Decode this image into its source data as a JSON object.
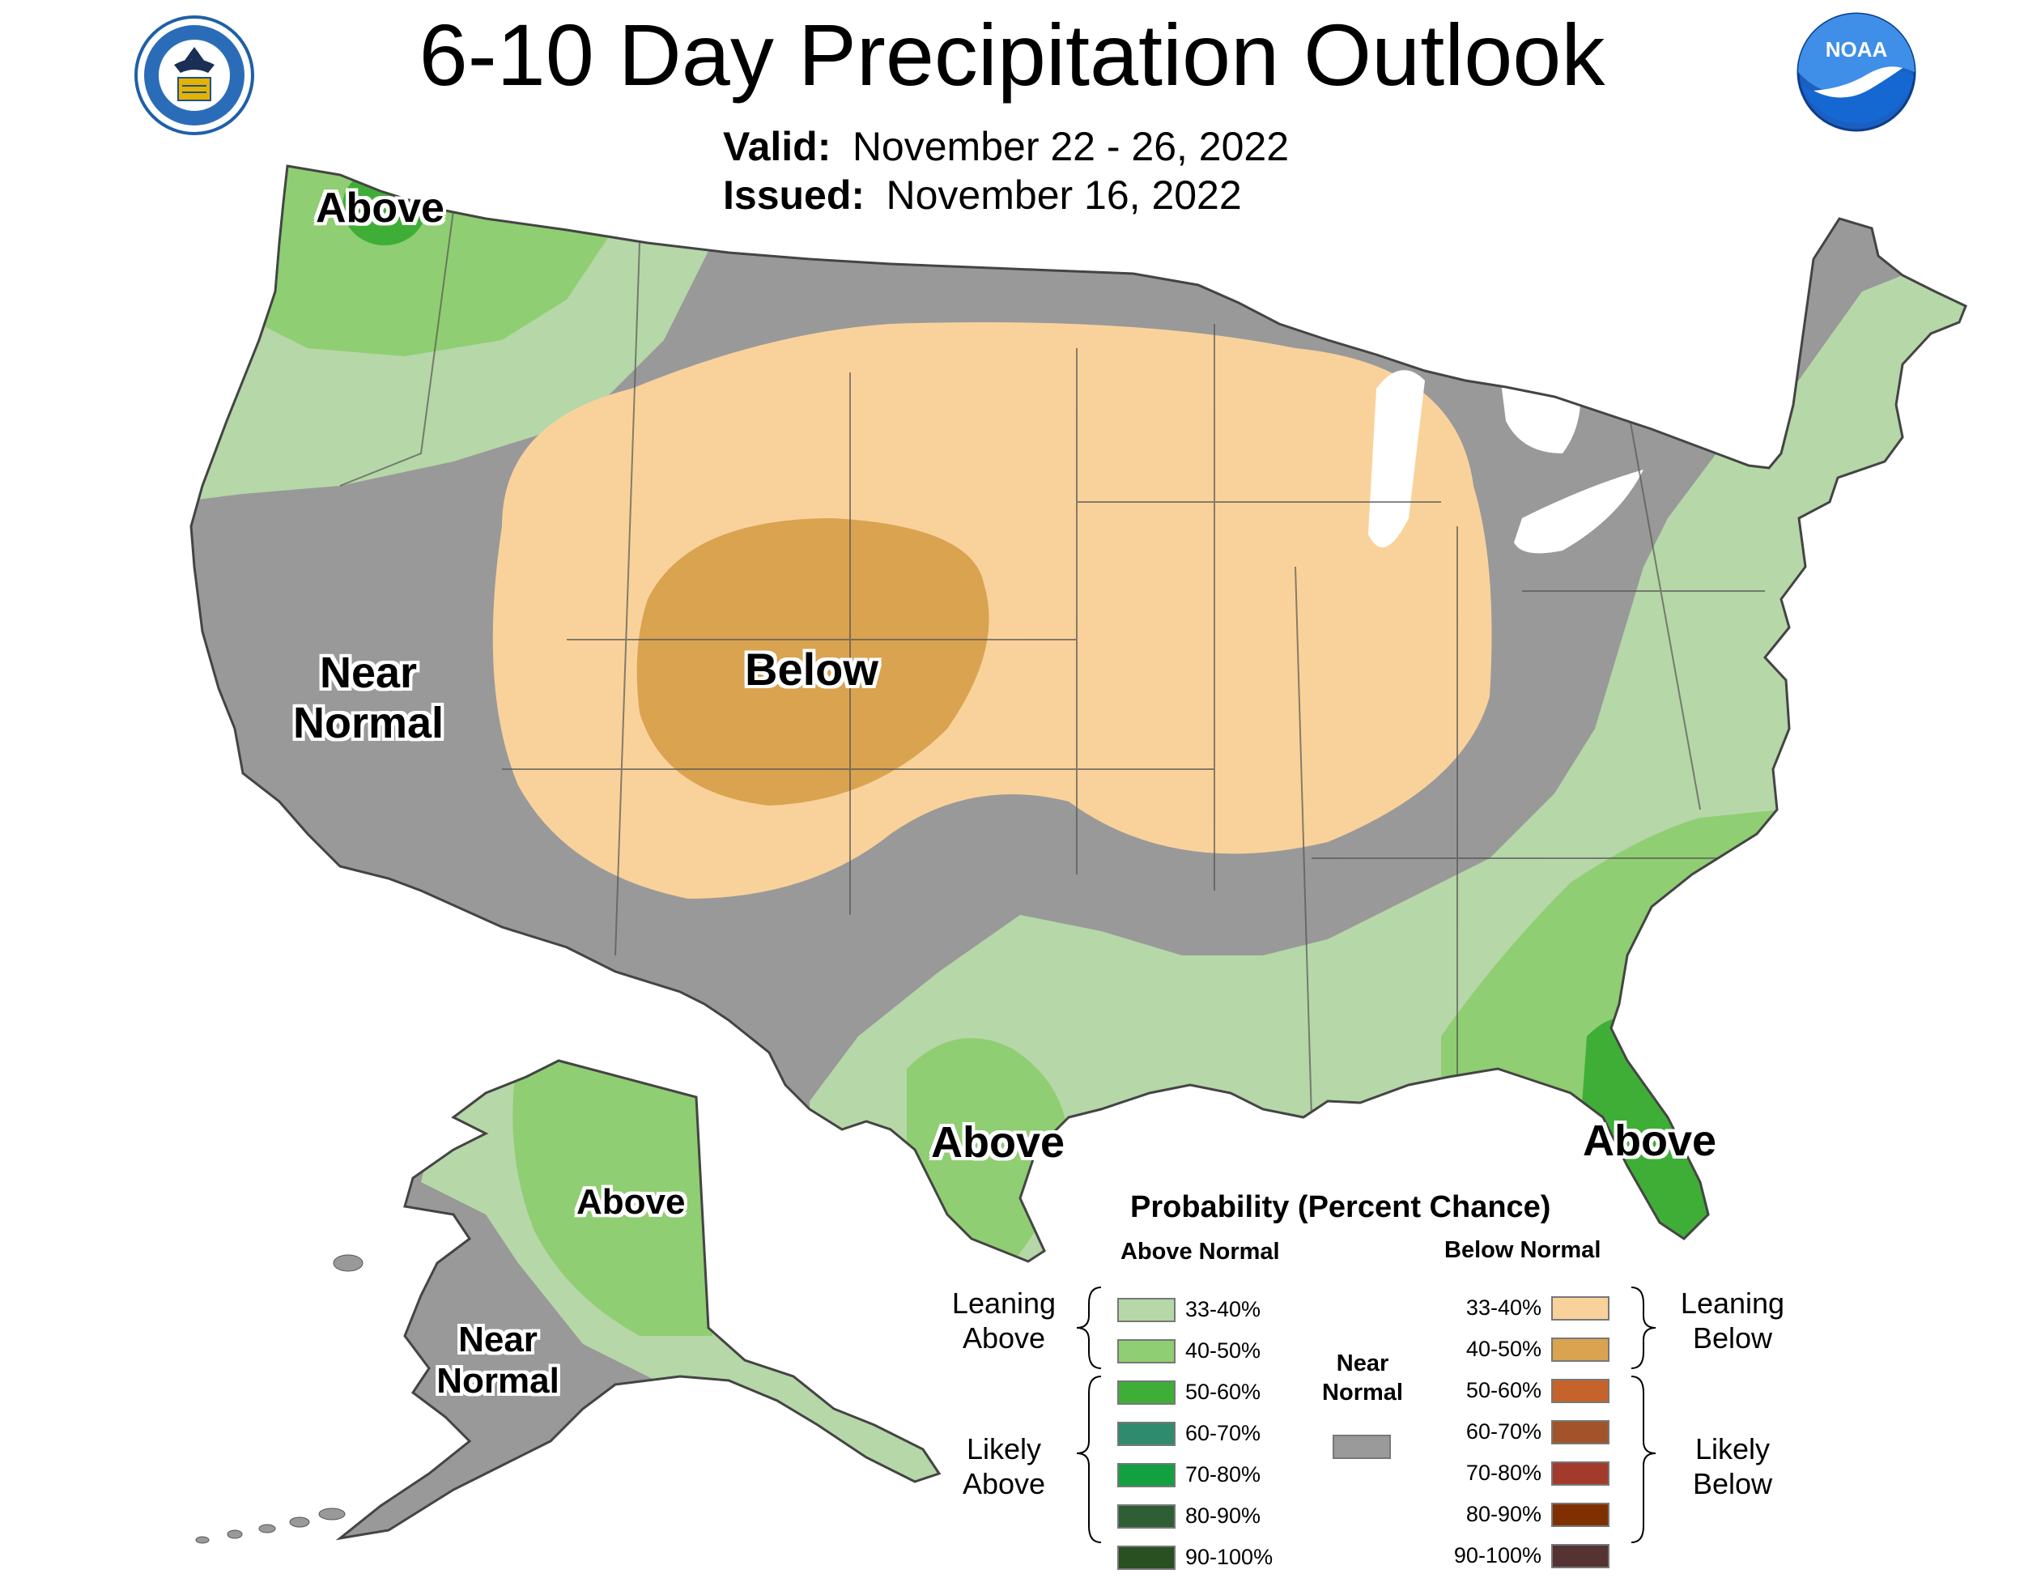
{
  "header": {
    "title": "6-10 Day Precipitation Outlook",
    "valid_label": "Valid:",
    "valid_value": "November 22 - 26, 2022",
    "issued_label": "Issued:",
    "issued_value": "November 16, 2022",
    "left_logo": "department-of-commerce-seal",
    "left_logo_text": "DEPARTMENT OF COMMERCE · UNITED STATES OF AMERICA",
    "right_logo": "noaa-logo",
    "right_logo_text": "NOAA"
  },
  "map": {
    "labels": {
      "northwest_above": "Above",
      "west_near_1": "Near",
      "west_near_2": "Normal",
      "central_below": "Below",
      "texas_above": "Above",
      "florida_above": "Above",
      "alaska_above": "Above",
      "alaska_near_1": "Near",
      "alaska_near_2": "Normal"
    },
    "colors": {
      "lean_above": "#b6d7a8",
      "above_40_50": "#8fce72",
      "above_50_60": "#3fae37",
      "near_normal": "#999999",
      "lean_below": "#f9d29b",
      "below_40_50": "#d9a350",
      "border": "#555555"
    }
  },
  "legend": {
    "title": "Probability (Percent Chance)",
    "above_header": "Above Normal",
    "below_header": "Below Normal",
    "near_label_1": "Near",
    "near_label_2": "Normal",
    "near_color": "#9a9a9a",
    "leaning_above_1": "Leaning",
    "leaning_above_2": "Above",
    "likely_above_1": "Likely",
    "likely_above_2": "Above",
    "leaning_below_1": "Leaning",
    "leaning_below_2": "Below",
    "likely_below_1": "Likely",
    "likely_below_2": "Below",
    "above": [
      {
        "label": "33-40%",
        "color": "#b6d7a8"
      },
      {
        "label": "40-50%",
        "color": "#8fce72"
      },
      {
        "label": "50-60%",
        "color": "#3fae37"
      },
      {
        "label": "60-70%",
        "color": "#2e8b6e"
      },
      {
        "label": "70-80%",
        "color": "#13a040"
      },
      {
        "label": "80-90%",
        "color": "#2f5e35"
      },
      {
        "label": "90-100%",
        "color": "#285020"
      }
    ],
    "below": [
      {
        "label": "33-40%",
        "color": "#f9d29b"
      },
      {
        "label": "40-50%",
        "color": "#d9a350"
      },
      {
        "label": "50-60%",
        "color": "#c6632b"
      },
      {
        "label": "60-70%",
        "color": "#a3532a"
      },
      {
        "label": "70-80%",
        "color": "#a33b2c"
      },
      {
        "label": "80-90%",
        "color": "#803000"
      },
      {
        "label": "90-100%",
        "color": "#553333"
      }
    ]
  }
}
